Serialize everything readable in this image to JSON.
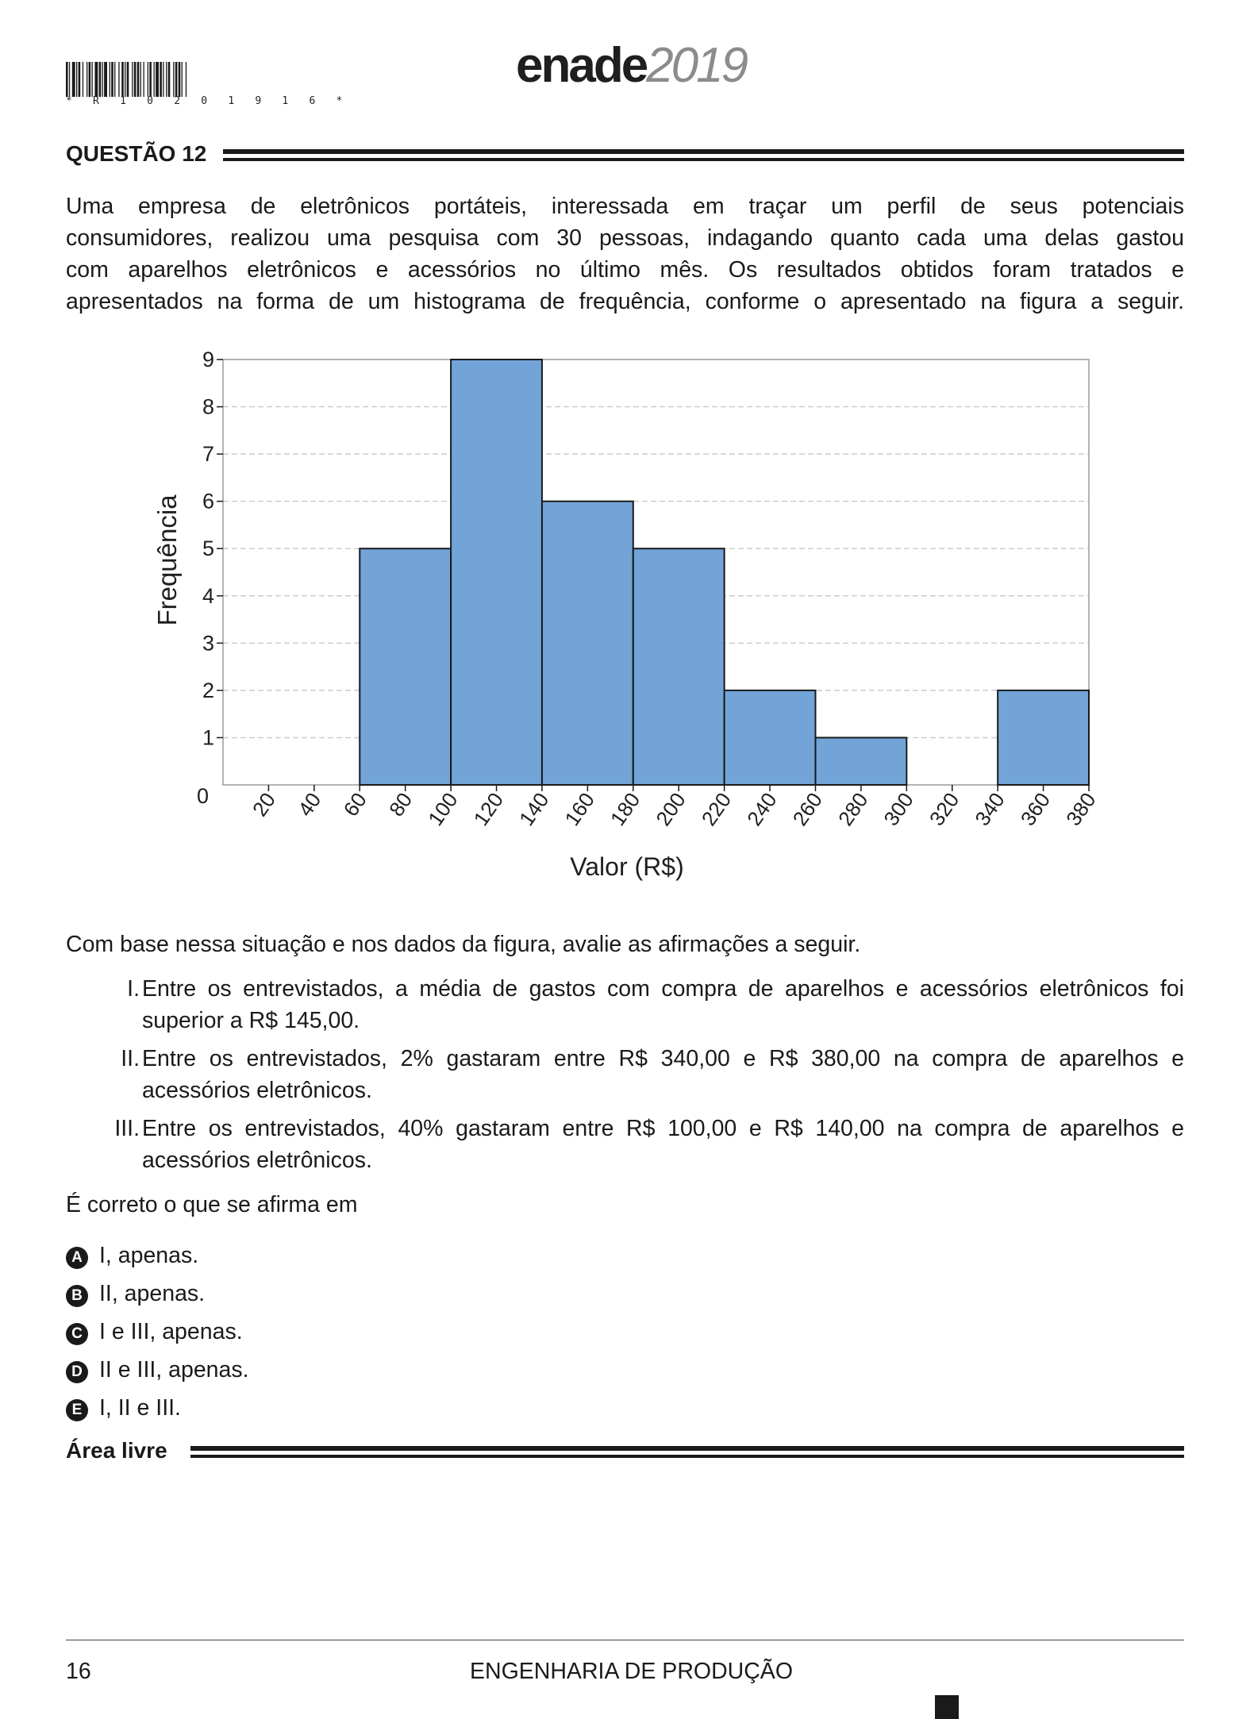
{
  "header": {
    "barcode_text": "* R 1 0 2 0 1 9 1 6 *",
    "brand_main": "enade",
    "brand_year": "2019"
  },
  "question": {
    "title": "QUESTÃO 12",
    "intro_lines": [
      "Uma empresa de eletrônicos portáteis, interessada em traçar um perfil de seus potenciais",
      "consumidores, realizou uma pesquisa com 30 pessoas, indagando quanto cada uma delas gastou",
      "com aparelhos eletrônicos e acessórios no último mês. Os resultados obtidos foram tratados e",
      "apresentados na forma de um histograma de frequência, conforme o apresentado na figura a seguir."
    ],
    "prompt": "Com base nessa situação e nos dados da figura, avalie as afirmações a seguir.",
    "statements": [
      {
        "num": "I.",
        "line1": "Entre os entrevistados, a média de gastos com compra de aparelhos e acessórios eletrônicos foi",
        "line2": "superior a R$ 145,00."
      },
      {
        "num": "II.",
        "line1": "Entre os entrevistados, 2% gastaram entre R$ 340,00 e R$ 380,00 na compra de aparelhos e",
        "line2": "acessórios eletrônicos."
      },
      {
        "num": "III.",
        "line1": "Entre os entrevistados, 40% gastaram entre R$ 100,00 e R$ 140,00 na compra de aparelhos e",
        "line2": "acessórios eletrônicos."
      }
    ],
    "ask": "É correto o que se afirma em",
    "options": [
      {
        "letter": "A",
        "text": "I, apenas."
      },
      {
        "letter": "B",
        "text": "II, apenas."
      },
      {
        "letter": "C",
        "text": "I e III, apenas."
      },
      {
        "letter": "D",
        "text": "II e III, apenas."
      },
      {
        "letter": "E",
        "text": "I, II e III."
      }
    ],
    "free_area": "Área livre"
  },
  "footer": {
    "page_number": "16",
    "course": "ENGENHARIA DE PRODUÇÃO"
  },
  "colors": {
    "bar_fill": "#72a4d8",
    "bar_stroke": "#1a1a1a",
    "grid": "#cccccc",
    "text": "#1a1a1a"
  },
  "chart_data": {
    "type": "bar",
    "xlabel": "Valor (R$)",
    "ylabel": "Frequência",
    "xlim": [
      0,
      380
    ],
    "ylim": [
      0,
      9
    ],
    "x_ticks": [
      "20",
      "40",
      "60",
      "80",
      "100",
      "120",
      "140",
      "160",
      "180",
      "200",
      "220",
      "240",
      "260",
      "280",
      "300",
      "320",
      "340",
      "360",
      "380"
    ],
    "y_ticks": [
      "0",
      "1",
      "2",
      "3",
      "4",
      "5",
      "6",
      "7",
      "8",
      "9"
    ],
    "bins": [
      {
        "from": 60,
        "to": 100,
        "value": 5
      },
      {
        "from": 100,
        "to": 140,
        "value": 9
      },
      {
        "from": 140,
        "to": 180,
        "value": 6
      },
      {
        "from": 180,
        "to": 220,
        "value": 5
      },
      {
        "from": 220,
        "to": 260,
        "value": 2
      },
      {
        "from": 260,
        "to": 300,
        "value": 1
      },
      {
        "from": 340,
        "to": 380,
        "value": 2
      }
    ],
    "grid": "horizontal dashed"
  }
}
